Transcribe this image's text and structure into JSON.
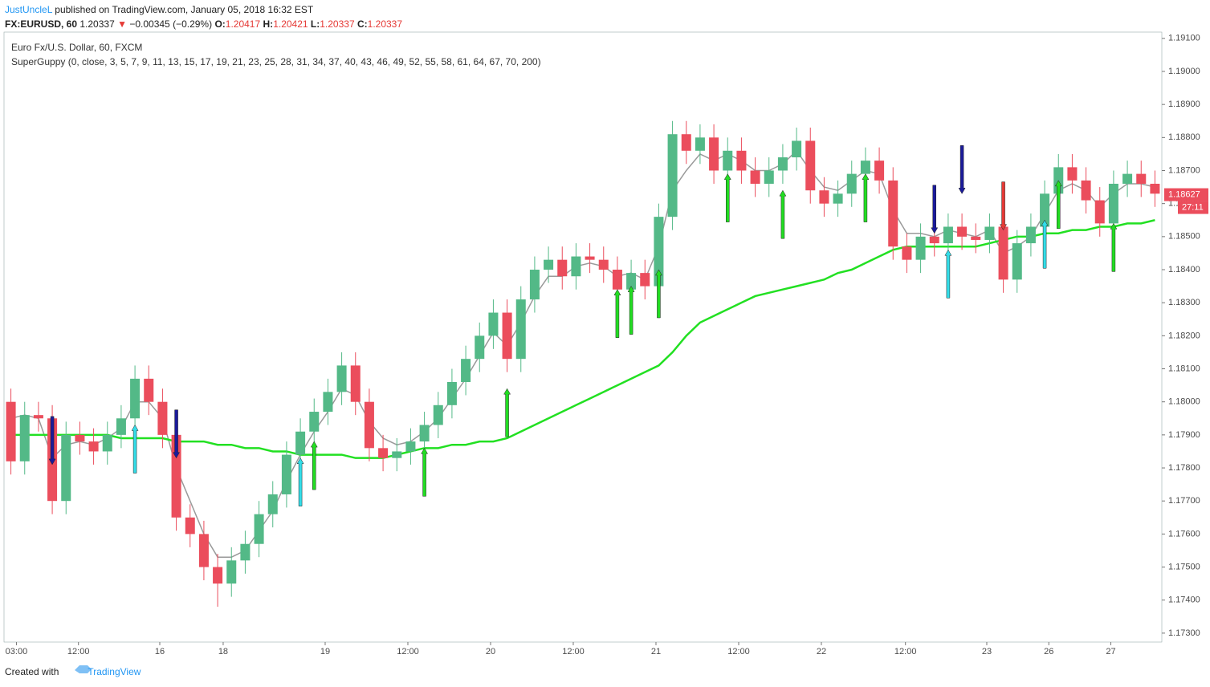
{
  "header": {
    "author": "JustUncleL",
    "published": "published on TradingView.com, January 05, 2018 16:32 EST",
    "symbol": "FX:EURUSD, 60",
    "last": "1.20337",
    "change": "−0.00345 (−0.29%)",
    "ohlc": [
      {
        "key": "O:",
        "value": "1.20417"
      },
      {
        "key": "H:",
        "value": "1.20421"
      },
      {
        "key": "L:",
        "value": "1.20337"
      },
      {
        "key": "C:",
        "value": "1.20337"
      }
    ]
  },
  "footer": {
    "created": "Created with",
    "brand": "TradingView"
  },
  "chart_data": {
    "type": "candlestick",
    "title": "Euro Fx/U.S. Dollar, 60, FXCM",
    "subtitle": "SuperGuppy (0, close, 3, 5, 7, 9, 11, 13, 15, 17, 19, 21, 23, 25, 28, 31, 34, 37, 40, 43, 46, 49, 52, 55, 58, 61, 64, 67, 70, 200)",
    "up_color": "#53b987",
    "down_color": "#eb4d5c",
    "grid": false,
    "ohlc": [
      [
        1.18,
        1.1804,
        1.1778,
        1.1782
      ],
      [
        1.1782,
        1.18,
        1.1778,
        1.1796
      ],
      [
        1.1796,
        1.18,
        1.1791,
        1.1795
      ],
      [
        1.1795,
        1.1799,
        1.1766,
        1.177
      ],
      [
        1.177,
        1.1794,
        1.1766,
        1.179
      ],
      [
        1.179,
        1.1794,
        1.1784,
        1.1788
      ],
      [
        1.1788,
        1.1792,
        1.1781,
        1.1785
      ],
      [
        1.1785,
        1.1794,
        1.1781,
        1.179
      ],
      [
        1.179,
        1.1799,
        1.1786,
        1.1795
      ],
      [
        1.1795,
        1.1811,
        1.1791,
        1.1807
      ],
      [
        1.1807,
        1.1811,
        1.1796,
        1.18
      ],
      [
        1.18,
        1.1804,
        1.1786,
        1.179
      ],
      [
        1.179,
        1.1794,
        1.1761,
        1.1765
      ],
      [
        1.1765,
        1.1769,
        1.1756,
        1.176
      ],
      [
        1.176,
        1.1764,
        1.1746,
        1.175
      ],
      [
        1.175,
        1.1754,
        1.1738,
        1.1745
      ],
      [
        1.1745,
        1.1756,
        1.1741,
        1.1752
      ],
      [
        1.1752,
        1.1761,
        1.1748,
        1.1757
      ],
      [
        1.1757,
        1.177,
        1.1753,
        1.1766
      ],
      [
        1.1766,
        1.1776,
        1.1762,
        1.1772
      ],
      [
        1.1772,
        1.1788,
        1.1768,
        1.1784
      ],
      [
        1.1784,
        1.1795,
        1.178,
        1.1791
      ],
      [
        1.1791,
        1.1801,
        1.1787,
        1.1797
      ],
      [
        1.1797,
        1.1807,
        1.1793,
        1.1803
      ],
      [
        1.1803,
        1.1815,
        1.1799,
        1.1811
      ],
      [
        1.1811,
        1.1815,
        1.1796,
        1.18
      ],
      [
        1.18,
        1.1804,
        1.1782,
        1.1786
      ],
      [
        1.1786,
        1.179,
        1.1779,
        1.1783
      ],
      [
        1.1783,
        1.1789,
        1.1779,
        1.1785
      ],
      [
        1.1785,
        1.1792,
        1.1781,
        1.1788
      ],
      [
        1.1788,
        1.1797,
        1.1784,
        1.1793
      ],
      [
        1.1793,
        1.1803,
        1.1789,
        1.1799
      ],
      [
        1.1799,
        1.181,
        1.1795,
        1.1806
      ],
      [
        1.1806,
        1.1817,
        1.1802,
        1.1813
      ],
      [
        1.1813,
        1.1824,
        1.1809,
        1.182
      ],
      [
        1.182,
        1.1831,
        1.1816,
        1.1827
      ],
      [
        1.1827,
        1.1831,
        1.1809,
        1.1813
      ],
      [
        1.1813,
        1.1835,
        1.1809,
        1.1831
      ],
      [
        1.1831,
        1.1844,
        1.1827,
        1.184
      ],
      [
        1.184,
        1.1847,
        1.1836,
        1.1843
      ],
      [
        1.1843,
        1.1847,
        1.1834,
        1.1838
      ],
      [
        1.1838,
        1.1848,
        1.1834,
        1.1844
      ],
      [
        1.1844,
        1.1848,
        1.1839,
        1.1843
      ],
      [
        1.1843,
        1.1847,
        1.1836,
        1.184
      ],
      [
        1.184,
        1.1844,
        1.183,
        1.1834
      ],
      [
        1.1834,
        1.1843,
        1.183,
        1.1839
      ],
      [
        1.1839,
        1.1843,
        1.1831,
        1.1835
      ],
      [
        1.1835,
        1.186,
        1.1831,
        1.1856
      ],
      [
        1.1856,
        1.1885,
        1.1852,
        1.1881
      ],
      [
        1.1881,
        1.1885,
        1.1872,
        1.1876
      ],
      [
        1.1876,
        1.1884,
        1.1872,
        1.188
      ],
      [
        1.188,
        1.1884,
        1.1866,
        1.187
      ],
      [
        1.187,
        1.188,
        1.1866,
        1.1876
      ],
      [
        1.1876,
        1.188,
        1.1866,
        1.187
      ],
      [
        1.187,
        1.1874,
        1.1862,
        1.1866
      ],
      [
        1.1866,
        1.1874,
        1.1862,
        1.187
      ],
      [
        1.187,
        1.1878,
        1.1866,
        1.1874
      ],
      [
        1.1874,
        1.1883,
        1.187,
        1.1879
      ],
      [
        1.1879,
        1.1883,
        1.186,
        1.1864
      ],
      [
        1.1864,
        1.1868,
        1.1856,
        1.186
      ],
      [
        1.186,
        1.1867,
        1.1856,
        1.1863
      ],
      [
        1.1863,
        1.1873,
        1.1859,
        1.1869
      ],
      [
        1.1869,
        1.1877,
        1.1865,
        1.1873
      ],
      [
        1.1873,
        1.1877,
        1.1863,
        1.1867
      ],
      [
        1.1867,
        1.1871,
        1.1843,
        1.1847
      ],
      [
        1.1847,
        1.1851,
        1.1839,
        1.1843
      ],
      [
        1.1843,
        1.1854,
        1.1839,
        1.185
      ],
      [
        1.185,
        1.1854,
        1.1844,
        1.1848
      ],
      [
        1.1848,
        1.1857,
        1.1844,
        1.1853
      ],
      [
        1.1853,
        1.1857,
        1.1846,
        1.185
      ],
      [
        1.185,
        1.1854,
        1.1845,
        1.1849
      ],
      [
        1.1849,
        1.1857,
        1.1845,
        1.1853
      ],
      [
        1.1853,
        1.1857,
        1.1833,
        1.1837
      ],
      [
        1.1837,
        1.1852,
        1.1833,
        1.1848
      ],
      [
        1.1848,
        1.1857,
        1.1844,
        1.1853
      ],
      [
        1.1853,
        1.1867,
        1.1849,
        1.1863
      ],
      [
        1.1863,
        1.1875,
        1.1859,
        1.1871
      ],
      [
        1.1871,
        1.1875,
        1.1863,
        1.1867
      ],
      [
        1.1867,
        1.1871,
        1.1857,
        1.1861
      ],
      [
        1.1861,
        1.1865,
        1.185,
        1.1854
      ],
      [
        1.1854,
        1.187,
        1.185,
        1.1866
      ],
      [
        1.1866,
        1.1873,
        1.1862,
        1.1869
      ],
      [
        1.1869,
        1.1873,
        1.1862,
        1.1866
      ],
      [
        1.1866,
        1.187,
        1.1859,
        1.1863
      ]
    ],
    "lines": [
      {
        "color": "#9a9a9a",
        "values": [
          1.1795,
          1.1796,
          1.1795,
          1.1783,
          1.1787,
          1.1788,
          1.1787,
          1.1789,
          1.1792,
          1.18,
          1.18,
          1.1795,
          1.178,
          1.177,
          1.176,
          1.1753,
          1.1753,
          1.1755,
          1.1761,
          1.1767,
          1.1776,
          1.1784,
          1.1791,
          1.1797,
          1.1804,
          1.1802,
          1.1794,
          1.1789,
          1.1787,
          1.1788,
          1.1791,
          1.1795,
          1.1801,
          1.1807,
          1.1814,
          1.1821,
          1.1817,
          1.1824,
          1.1832,
          1.1838,
          1.1838,
          1.1841,
          1.1842,
          1.1841,
          1.1838,
          1.1839,
          1.1837,
          1.1847,
          1.1864,
          1.187,
          1.1875,
          1.1873,
          1.1875,
          1.1873,
          1.187,
          1.187,
          1.1872,
          1.1876,
          1.187,
          1.1865,
          1.1864,
          1.1867,
          1.187,
          1.1869,
          1.1858,
          1.1851,
          1.1851,
          1.185,
          1.1852,
          1.1851,
          1.185,
          1.1852,
          1.1845,
          1.1847,
          1.185,
          1.1857,
          1.1864,
          1.1866,
          1.1864,
          1.1859,
          1.1863,
          1.1866,
          1.1866,
          1.1865
        ]
      },
      {
        "color": "#22e022",
        "values": [
          1.179,
          1.179,
          1.179,
          1.179,
          1.179,
          1.179,
          1.179,
          1.179,
          1.1789,
          1.1789,
          1.1789,
          1.1789,
          1.1788,
          1.1788,
          1.1788,
          1.1787,
          1.1787,
          1.1786,
          1.1786,
          1.1785,
          1.1785,
          1.1784,
          1.1784,
          1.1784,
          1.1784,
          1.1783,
          1.1783,
          1.1783,
          1.1784,
          1.1785,
          1.1786,
          1.1786,
          1.1787,
          1.1787,
          1.1788,
          1.1788,
          1.1789,
          1.1791,
          1.1793,
          1.1795,
          1.1797,
          1.1799,
          1.1801,
          1.1803,
          1.1805,
          1.1807,
          1.1809,
          1.1811,
          1.1815,
          1.182,
          1.1824,
          1.1826,
          1.1828,
          1.183,
          1.1832,
          1.1833,
          1.1834,
          1.1835,
          1.1836,
          1.1837,
          1.1839,
          1.184,
          1.1842,
          1.1844,
          1.1846,
          1.1847,
          1.1847,
          1.1847,
          1.1847,
          1.1847,
          1.1847,
          1.1848,
          1.1849,
          1.185,
          1.185,
          1.1851,
          1.1851,
          1.1852,
          1.1852,
          1.1853,
          1.1853,
          1.1854,
          1.1854,
          1.1855
        ]
      }
    ],
    "signals": [
      {
        "x": 3,
        "price": 1.1781,
        "direction": "down",
        "color": "#1a1a9a"
      },
      {
        "x": 9,
        "price": 1.1793,
        "direction": "up",
        "color": "#33dde8"
      },
      {
        "x": 12,
        "price": 1.1783,
        "direction": "down",
        "color": "#1a1a9a"
      },
      {
        "x": 21,
        "price": 1.1783,
        "direction": "up",
        "color": "#33dde8"
      },
      {
        "x": 22,
        "price": 1.1788,
        "direction": "up",
        "color": "#22dd22"
      },
      {
        "x": 30,
        "price": 1.1786,
        "direction": "up",
        "color": "#22dd22"
      },
      {
        "x": 36,
        "price": 1.1804,
        "direction": "up",
        "color": "#22dd22"
      },
      {
        "x": 44,
        "price": 1.1834,
        "direction": "up",
        "color": "#22dd22"
      },
      {
        "x": 45,
        "price": 1.1835,
        "direction": "up",
        "color": "#22dd22"
      },
      {
        "x": 47,
        "price": 1.184,
        "direction": "up",
        "color": "#22dd22"
      },
      {
        "x": 52,
        "price": 1.1869,
        "direction": "up",
        "color": "#22dd22"
      },
      {
        "x": 56,
        "price": 1.1864,
        "direction": "up",
        "color": "#22dd22"
      },
      {
        "x": 62,
        "price": 1.1869,
        "direction": "up",
        "color": "#22dd22"
      },
      {
        "x": 67,
        "price": 1.1851,
        "direction": "down",
        "color": "#1a1a9a"
      },
      {
        "x": 68,
        "price": 1.1846,
        "direction": "up",
        "color": "#33dde8"
      },
      {
        "x": 69,
        "price": 1.1863,
        "direction": "down",
        "color": "#1a1a9a"
      },
      {
        "x": 72,
        "price": 1.1852,
        "direction": "down",
        "color": "#e53935"
      },
      {
        "x": 75,
        "price": 1.1855,
        "direction": "up",
        "color": "#33dde8"
      },
      {
        "x": 76,
        "price": 1.1867,
        "direction": "up",
        "color": "#22dd22"
      },
      {
        "x": 80,
        "price": 1.1854,
        "direction": "up",
        "color": "#22dd22"
      }
    ],
    "xlim": [
      -0.5,
      83.5
    ],
    "xticks": [
      {
        "value": 0.4,
        "label": "03:00"
      },
      {
        "value": 4.9,
        "label": "12:00"
      },
      {
        "value": 10.8,
        "label": "16"
      },
      {
        "value": 15.4,
        "label": "18"
      },
      {
        "value": 22.8,
        "label": "19"
      },
      {
        "value": 28.8,
        "label": "12:00"
      },
      {
        "value": 34.8,
        "label": "20"
      },
      {
        "value": 40.8,
        "label": "12:00"
      },
      {
        "value": 46.8,
        "label": "21"
      },
      {
        "value": 52.8,
        "label": "12:00"
      },
      {
        "value": 58.8,
        "label": "22"
      },
      {
        "value": 64.9,
        "label": "12:00"
      },
      {
        "value": 70.8,
        "label": "23"
      },
      {
        "value": 75.3,
        "label": "26"
      },
      {
        "value": 79.8,
        "label": "27"
      }
    ],
    "ylim": [
      1.17273,
      1.19119
    ],
    "yticks": [
      {
        "value": 1.173,
        "label": "1.17300"
      },
      {
        "value": 1.174,
        "label": "1.17400"
      },
      {
        "value": 1.175,
        "label": "1.17500"
      },
      {
        "value": 1.176,
        "label": "1.17600"
      },
      {
        "value": 1.177,
        "label": "1.17700"
      },
      {
        "value": 1.178,
        "label": "1.17800"
      },
      {
        "value": 1.179,
        "label": "1.17900"
      },
      {
        "value": 1.18,
        "label": "1.18000"
      },
      {
        "value": 1.181,
        "label": "1.18100"
      },
      {
        "value": 1.182,
        "label": "1.18200"
      },
      {
        "value": 1.183,
        "label": "1.18300"
      },
      {
        "value": 1.184,
        "label": "1.18400"
      },
      {
        "value": 1.185,
        "label": "1.18500"
      },
      {
        "value": 1.186,
        "label": "1.18600"
      },
      {
        "value": 1.187,
        "label": "1.18700"
      },
      {
        "value": 1.188,
        "label": "1.18800"
      },
      {
        "value": 1.189,
        "label": "1.18900"
      },
      {
        "value": 1.19,
        "label": "1.19000"
      },
      {
        "value": 1.191,
        "label": "1.19100"
      }
    ],
    "last_price": {
      "value": 1.18627,
      "label": "1.18627"
    },
    "countdown": "27:11"
  }
}
